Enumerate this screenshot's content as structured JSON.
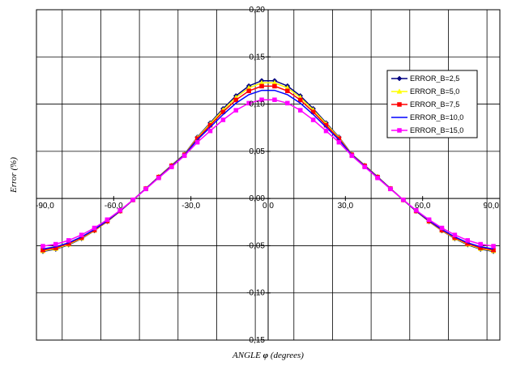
{
  "chart_data": {
    "type": "line",
    "title": "",
    "xlabel_prefix": "ANGLE ",
    "xlabel_symbol": "φ",
    "xlabel_suffix": " (degrees)",
    "ylabel": "Error (%)",
    "xlim": [
      -90,
      90
    ],
    "ylim": [
      -0.15,
      0.2
    ],
    "x_ticks": [
      -90,
      -60,
      -30,
      0,
      30,
      60,
      90
    ],
    "x_tick_labels": [
      "-90,0",
      "-60,0",
      "-30,0",
      "0,0",
      "30,0",
      "60,0",
      "90,0"
    ],
    "y_ticks": [
      0.2,
      0.15,
      0.1,
      0.05,
      0.0,
      -0.05,
      -0.1,
      -0.15
    ],
    "y_tick_labels": [
      "0,20",
      "0,15",
      "0,10",
      "0,05",
      "0,00",
      "-0,05",
      "-0,10",
      "-0,15"
    ],
    "grid": true,
    "legend_position": "right",
    "x": [
      -87.5,
      -82.5,
      -77.5,
      -72.5,
      -67.5,
      -62.5,
      -57.5,
      -52.5,
      -47.5,
      -42.5,
      -37.5,
      -32.5,
      -27.5,
      -22.5,
      -17.5,
      -12.5,
      -7.5,
      -2.5,
      2.5,
      7.5,
      12.5,
      17.5,
      22.5,
      27.5,
      32.5,
      37.5,
      42.5,
      47.5,
      52.5,
      57.5,
      62.5,
      67.5,
      72.5,
      77.5,
      82.5,
      87.5
    ],
    "series": [
      {
        "name": "ERROR_B=2,5",
        "color": "#000080",
        "marker": "diamond",
        "values": [
          -0.0561,
          -0.0537,
          -0.0491,
          -0.0425,
          -0.0342,
          -0.0244,
          -0.0134,
          -0.0016,
          0.0107,
          0.0231,
          0.0352,
          0.0469,
          0.0651,
          0.0801,
          0.0952,
          0.1088,
          0.1193,
          0.1248,
          0.1248,
          0.1193,
          0.1088,
          0.0952,
          0.0801,
          0.0651,
          0.0469,
          0.0352,
          0.0231,
          0.0107,
          -0.0016,
          -0.0134,
          -0.0244,
          -0.0342,
          -0.0425,
          -0.0491,
          -0.0537,
          -0.0561
        ]
      },
      {
        "name": "ERROR_B=5,0",
        "color": "#ffff00",
        "marker": "triangle",
        "values": [
          -0.0555,
          -0.0531,
          -0.0486,
          -0.0421,
          -0.0339,
          -0.0242,
          -0.0133,
          -0.0016,
          0.0106,
          0.0229,
          0.0349,
          0.0466,
          0.0644,
          0.0791,
          0.0938,
          0.107,
          0.1172,
          0.1225,
          0.1225,
          0.1172,
          0.107,
          0.0938,
          0.0791,
          0.0644,
          0.0466,
          0.0349,
          0.0229,
          0.0106,
          -0.0016,
          -0.0133,
          -0.0242,
          -0.0339,
          -0.0421,
          -0.0486,
          -0.0531,
          -0.0555
        ]
      },
      {
        "name": "ERROR_B=7,5",
        "color": "#ff0000",
        "marker": "square",
        "values": [
          -0.0546,
          -0.0523,
          -0.0478,
          -0.0415,
          -0.0334,
          -0.0239,
          -0.0132,
          -0.0015,
          0.0105,
          0.0227,
          0.0346,
          0.0463,
          0.0634,
          0.0776,
          0.0917,
          0.1044,
          0.114,
          0.119,
          0.119,
          0.114,
          0.1044,
          0.0917,
          0.0776,
          0.0634,
          0.0463,
          0.0346,
          0.0227,
          0.0105,
          -0.0015,
          -0.0132,
          -0.0239,
          -0.0334,
          -0.0415,
          -0.0478,
          -0.0523,
          -0.0546
        ]
      },
      {
        "name": "ERROR_B=10,0",
        "color": "#0000ff",
        "marker": "none",
        "values": [
          -0.0535,
          -0.0512,
          -0.0469,
          -0.0407,
          -0.0328,
          -0.0235,
          -0.013,
          -0.0015,
          0.0104,
          0.0224,
          0.0342,
          0.046,
          0.0622,
          0.0756,
          0.089,
          0.101,
          0.11,
          0.1146,
          0.1146,
          0.11,
          0.101,
          0.089,
          0.0756,
          0.0622,
          0.046,
          0.0342,
          0.0224,
          0.0104,
          -0.0015,
          -0.013,
          -0.0235,
          -0.0328,
          -0.0407,
          -0.0469,
          -0.0512,
          -0.0535
        ]
      },
      {
        "name": "ERROR_B=15,0",
        "color": "#ff00ff",
        "marker": "square",
        "values": [
          -0.0505,
          -0.0484,
          -0.0444,
          -0.0386,
          -0.0312,
          -0.0224,
          -0.0125,
          -0.0014,
          0.0101,
          0.0218,
          0.0334,
          0.0453,
          0.0596,
          0.0716,
          0.0833,
          0.0935,
          0.101,
          0.1046,
          0.1046,
          0.101,
          0.0935,
          0.0833,
          0.0716,
          0.0596,
          0.0453,
          0.0334,
          0.0218,
          0.0101,
          -0.0014,
          -0.0125,
          -0.0224,
          -0.0312,
          -0.0386,
          -0.0444,
          -0.0484,
          -0.0505
        ]
      }
    ]
  }
}
